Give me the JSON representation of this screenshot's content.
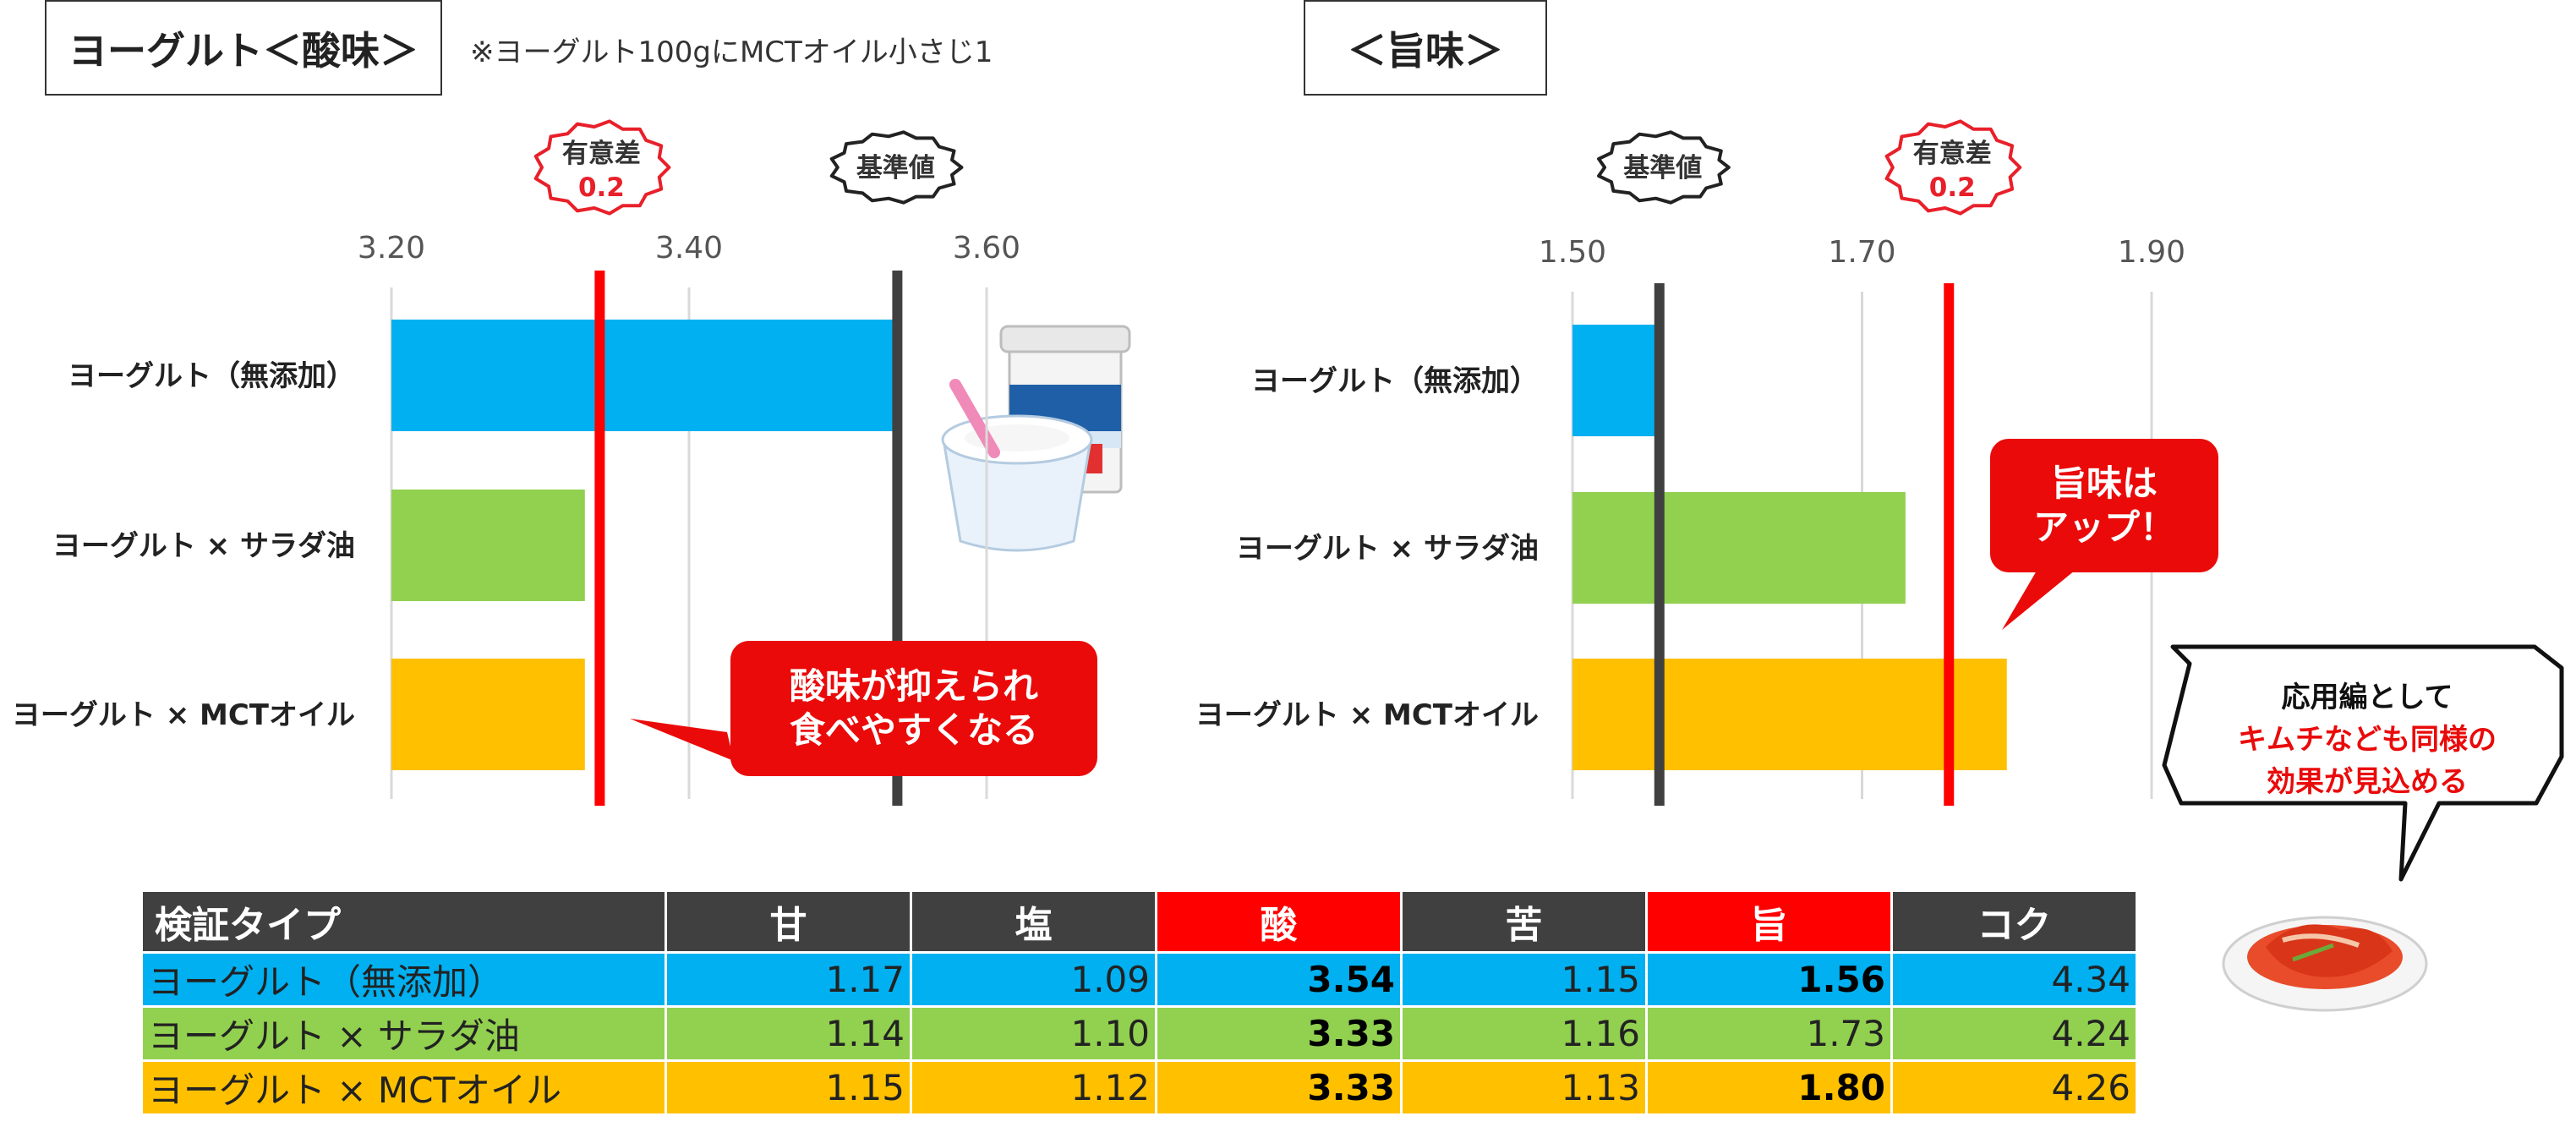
{
  "left_title": "ヨーグルト＜酸味＞",
  "note": "※ヨーグルト100gにMCTオイル小さじ1",
  "right_title": "＜旨味＞",
  "badges": {
    "significance_label": "有意差",
    "significance_value": "0.2",
    "baseline_label": "基準値"
  },
  "callouts": {
    "sour_line1": "酸味が抑えられ",
    "sour_line2": "食べやすくなる",
    "umami_line1": "旨味は",
    "umami_line2": "アップ！",
    "kimchi_line1": "応用編として",
    "kimchi_line2": "キムチなども同様の",
    "kimchi_line3": "効果が見込める"
  },
  "colors": {
    "blue": "#00b0f0",
    "green": "#92d050",
    "orange": "#ffc000",
    "red": "#ff0000",
    "dark": "#404040"
  },
  "chart_data": [
    {
      "type": "bar",
      "orientation": "horizontal",
      "title": "ヨーグルト＜酸味＞",
      "categories": [
        "ヨーグルト（無添加）",
        "ヨーグルト × サラダ油",
        "ヨーグルト × MCTオイル"
      ],
      "values": [
        3.54,
        3.33,
        3.33
      ],
      "bar_colors": [
        "#00b0f0",
        "#92d050",
        "#ffc000"
      ],
      "xlim": [
        3.2,
        3.6
      ],
      "xticks": [
        "3.20",
        "3.40",
        "3.60"
      ],
      "reference_lines": [
        {
          "label": "基準値",
          "value": 3.54,
          "color": "#404040"
        },
        {
          "label": "有意差 0.2",
          "value": 3.34,
          "color": "#ff0000"
        }
      ],
      "grid": true
    },
    {
      "type": "bar",
      "orientation": "horizontal",
      "title": "＜旨味＞",
      "categories": [
        "ヨーグルト（無添加）",
        "ヨーグルト × サラダ油",
        "ヨーグルト × MCTオイル"
      ],
      "values": [
        1.56,
        1.73,
        1.8
      ],
      "bar_colors": [
        "#00b0f0",
        "#92d050",
        "#ffc000"
      ],
      "xlim": [
        1.5,
        1.9
      ],
      "xticks": [
        "1.50",
        "1.70",
        "1.90"
      ],
      "reference_lines": [
        {
          "label": "基準値",
          "value": 1.56,
          "color": "#404040"
        },
        {
          "label": "有意差 0.2",
          "value": 1.76,
          "color": "#ff0000"
        }
      ],
      "grid": true
    },
    {
      "type": "table",
      "columns": [
        "検証タイプ",
        "甘",
        "塩",
        "酸",
        "苦",
        "旨",
        "コク"
      ],
      "highlight_columns": [
        "酸",
        "旨"
      ],
      "rows": [
        {
          "label": "ヨーグルト（無添加）",
          "color": "#00b0f0",
          "values": [
            "1.17",
            "1.09",
            "3.54",
            "1.15",
            "1.56",
            "4.34"
          ],
          "bold": [
            false,
            false,
            true,
            false,
            true,
            false
          ]
        },
        {
          "label": "ヨーグルト × サラダ油",
          "color": "#92d050",
          "values": [
            "1.14",
            "1.10",
            "3.33",
            "1.16",
            "1.73",
            "4.24"
          ],
          "bold": [
            false,
            false,
            true,
            false,
            false,
            false
          ]
        },
        {
          "label": "ヨーグルト × MCTオイル",
          "color": "#ffc000",
          "values": [
            "1.15",
            "1.12",
            "3.33",
            "1.13",
            "1.80",
            "4.26"
          ],
          "bold": [
            false,
            false,
            true,
            false,
            true,
            false
          ]
        }
      ]
    }
  ]
}
